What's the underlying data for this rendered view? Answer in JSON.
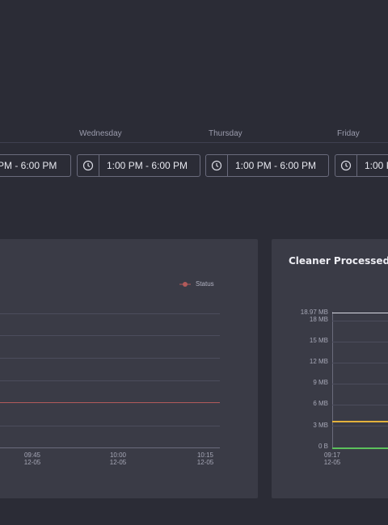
{
  "schedule": {
    "days": [
      {
        "name": "",
        "time": "PM - 6:00 PM"
      },
      {
        "name": "Wednesday",
        "time": "1:00 PM - 6:00 PM"
      },
      {
        "name": "Thursday",
        "time": "1:00 PM - 6:00 PM"
      },
      {
        "name": "Friday",
        "time": "1:00 P"
      }
    ],
    "icon": "clock-icon"
  },
  "status_panel": {
    "legend": "Status",
    "line_color": "#b25a5a",
    "x_ticks": [
      {
        "time": "09:45",
        "date": "12-05"
      },
      {
        "time": "10:00",
        "date": "12-05"
      },
      {
        "time": "10:15",
        "date": "12-05"
      }
    ]
  },
  "cleaner_panel": {
    "title": "Cleaner Processed",
    "y_ticks": [
      "18.97 MB",
      "18 MB",
      "15 MB",
      "12 MB",
      "9 MB",
      "6 MB",
      "3 MB",
      "0 B"
    ],
    "x_ticks": [
      {
        "time": "09:17",
        "date": "12-05"
      }
    ],
    "colors": {
      "yellow": "#e3b23c",
      "green": "#5cc15c",
      "top_line": "#d9dae3"
    }
  },
  "chart_data": [
    {
      "type": "line",
      "title": "",
      "x": [
        "09:45",
        "10:00",
        "10:15"
      ],
      "series": [
        {
          "name": "Status",
          "values": [
            1,
            1,
            1
          ]
        }
      ]
    },
    {
      "type": "line",
      "title": "Cleaner Processed",
      "ylabel": "",
      "ylim": [
        0,
        18.97
      ],
      "y_unit": "MB",
      "x": [
        "09:17"
      ],
      "series": [
        {
          "values": [
            3.6
          ]
        },
        {
          "values": [
            0
          ]
        },
        {
          "values": [
            18.97
          ]
        }
      ]
    }
  ]
}
